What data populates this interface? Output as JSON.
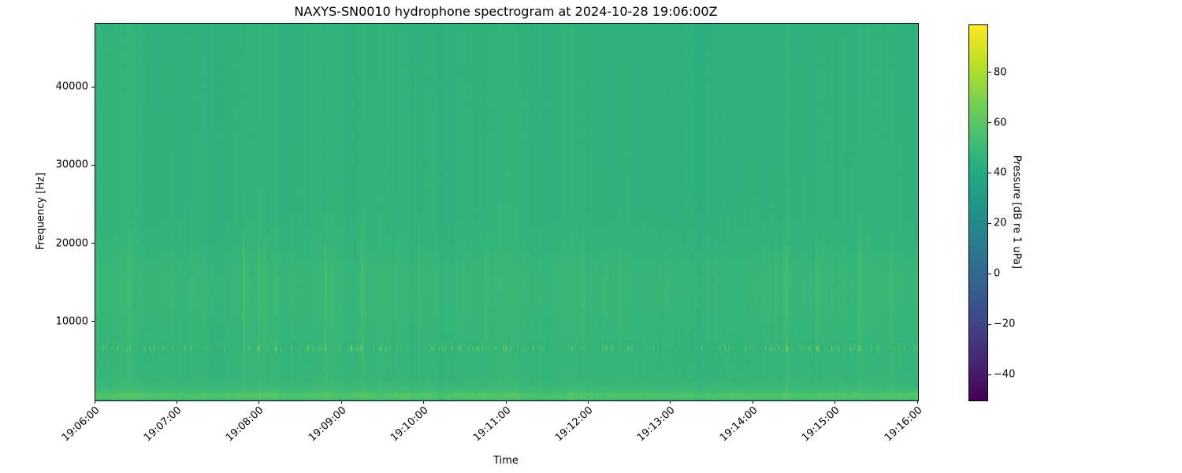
{
  "chart_data": {
    "type": "heatmap",
    "subtype": "spectrogram",
    "title": "NAXYS-SN0010 hydrophone spectrogram at 2024-10-28 19:06:00Z",
    "xlabel": "Time",
    "ylabel": "Frequency [Hz]",
    "colorbar_label": "Pressure [dB re 1 uPa]",
    "colormap": "viridis",
    "colormap_stops": [
      "#440154",
      "#482475",
      "#414487",
      "#355f8d",
      "#2a788e",
      "#21918c",
      "#22a884",
      "#44bf70",
      "#7ad151",
      "#bddf26",
      "#fde725"
    ],
    "clim": [
      -50,
      99
    ],
    "ylim_hz": [
      0,
      48200
    ],
    "x_tick_labels": [
      "19:06:00",
      "19:07:00",
      "19:08:00",
      "19:09:00",
      "19:10:00",
      "19:11:00",
      "19:12:00",
      "19:13:00",
      "19:14:00",
      "19:15:00",
      "19:16:00"
    ],
    "x_tick_interval_seconds": 60,
    "y_ticks": [
      {
        "value": 10000,
        "label": "10000"
      },
      {
        "value": 20000,
        "label": "20000"
      },
      {
        "value": 30000,
        "label": "30000"
      },
      {
        "value": 40000,
        "label": "40000"
      }
    ],
    "colorbar_ticks": [
      {
        "value": 80,
        "label": "80"
      },
      {
        "value": 60,
        "label": "60"
      },
      {
        "value": 40,
        "label": "40"
      },
      {
        "value": 20,
        "label": "20"
      },
      {
        "value": 0,
        "label": "0"
      },
      {
        "value": -20,
        "label": "−20"
      },
      {
        "value": -40,
        "label": "−40"
      }
    ],
    "background_frequency_profile_db": [
      {
        "freq_hz": 0,
        "level_db": 46.5
      },
      {
        "freq_hz": 130,
        "level_db": 48.0
      },
      {
        "freq_hz": 260,
        "level_db": 55.0
      },
      {
        "freq_hz": 450,
        "level_db": 57.5
      },
      {
        "freq_hz": 650,
        "level_db": 58.0
      },
      {
        "freq_hz": 900,
        "level_db": 56.5
      },
      {
        "freq_hz": 1200,
        "level_db": 52.5
      },
      {
        "freq_hz": 1900,
        "level_db": 49.5
      },
      {
        "freq_hz": 3000,
        "level_db": 47.6
      },
      {
        "freq_hz": 6000,
        "level_db": 47.3
      },
      {
        "freq_hz": 9500,
        "level_db": 47.6
      },
      {
        "freq_hz": 12500,
        "level_db": 48.1
      },
      {
        "freq_hz": 15500,
        "level_db": 48.2
      },
      {
        "freq_hz": 17500,
        "level_db": 47.7
      },
      {
        "freq_hz": 19500,
        "level_db": 46.6
      },
      {
        "freq_hz": 24000,
        "level_db": 45.9
      },
      {
        "freq_hz": 32000,
        "level_db": 45.7
      },
      {
        "freq_hz": 48200,
        "level_db": 45.4
      }
    ],
    "features": [
      {
        "name": "tonal-pulse-band",
        "center_hz": 6700,
        "bandwidth_hz": 500,
        "peak_db": 78,
        "description": "intermittent bright yellow-green pulses around 6.7 kHz"
      },
      {
        "name": "broadband-striations",
        "range_hz": [
          2000,
          19000
        ],
        "peak_excess_db": 8,
        "description": "vertical brighter streaks strongest near 14 kHz, recurring over time"
      },
      {
        "name": "low-frequency-band",
        "range_hz": [
          200,
          1200
        ],
        "level_db": 58,
        "description": "continuous bright green band near bottom of plot"
      },
      {
        "name": "uniform-background",
        "level_db": 46,
        "description": "teal-green background across all frequencies and times"
      }
    ]
  }
}
